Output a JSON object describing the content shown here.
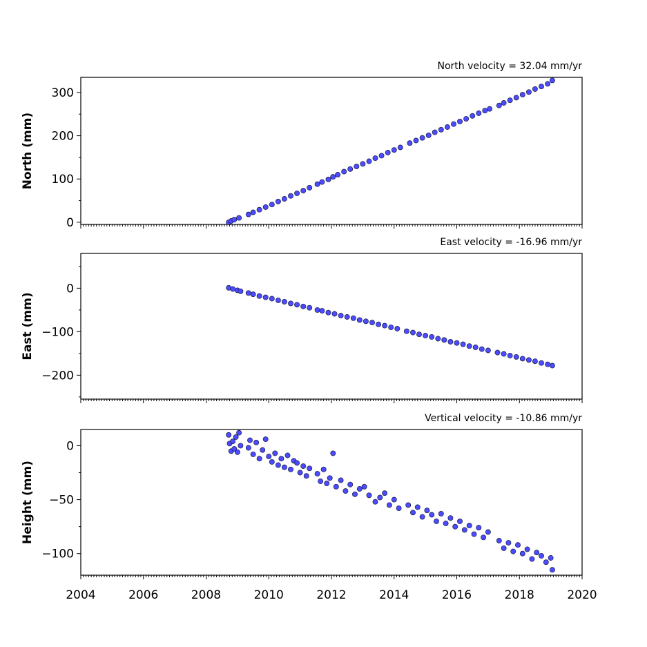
{
  "chart_data": [
    {
      "type": "scatter",
      "panel": "north",
      "ylabel": "North (mm)",
      "velocity_label": "North velocity = 32.04 mm/yr",
      "velocity_mm_per_yr": 32.04,
      "xlim": [
        2004,
        2020
      ],
      "ylim": [
        -5,
        335
      ],
      "yticks": [
        0,
        100,
        200,
        300
      ],
      "ytick_labels": [
        "0",
        "100",
        "200",
        "300"
      ],
      "marker_color": "#4b4bff",
      "marker_edge": "#1a1a40",
      "series": [
        {
          "x": [
            2008.72,
            2008.8,
            2008.9,
            2009.05,
            2009.35,
            2009.5,
            2009.7,
            2009.9,
            2010.1,
            2010.3,
            2010.5,
            2010.7,
            2010.9,
            2011.1,
            2011.3,
            2011.55,
            2011.7,
            2011.9,
            2012.05,
            2012.2,
            2012.4,
            2012.6,
            2012.8,
            2013.0,
            2013.2,
            2013.4,
            2013.6,
            2013.8,
            2014.0,
            2014.2,
            2014.5,
            2014.7,
            2014.9,
            2015.1,
            2015.3,
            2015.5,
            2015.7,
            2015.9,
            2016.1,
            2016.3,
            2016.5,
            2016.7,
            2016.9,
            2017.05,
            2017.35,
            2017.5,
            2017.7,
            2017.9,
            2018.1,
            2018.3,
            2018.5,
            2018.7,
            2018.9,
            2019.05
          ],
          "y": [
            0,
            3,
            6,
            10,
            18,
            23,
            29,
            35,
            41,
            48,
            54,
            61,
            67,
            73,
            80,
            88,
            93,
            99,
            105,
            110,
            117,
            123,
            129,
            135,
            141,
            148,
            154,
            161,
            167,
            173,
            183,
            189,
            195,
            201,
            208,
            214,
            220,
            227,
            233,
            239,
            246,
            252,
            258,
            262,
            270,
            276,
            282,
            288,
            295,
            301,
            308,
            314,
            320,
            328
          ]
        }
      ]
    },
    {
      "type": "scatter",
      "panel": "east",
      "ylabel": "East (mm)",
      "velocity_label": "East velocity = -16.96 mm/yr",
      "velocity_mm_per_yr": -16.96,
      "xlim": [
        2004,
        2020
      ],
      "ylim": [
        -255,
        80
      ],
      "yticks": [
        0,
        -100,
        -200
      ],
      "ytick_labels": [
        "0",
        "−100",
        "−200"
      ],
      "marker_color": "#4b4bff",
      "marker_edge": "#1a1a40",
      "series": [
        {
          "x": [
            2008.72,
            2008.85,
            2009.0,
            2009.1,
            2009.35,
            2009.5,
            2009.7,
            2009.9,
            2010.1,
            2010.3,
            2010.5,
            2010.7,
            2010.9,
            2011.1,
            2011.3,
            2011.55,
            2011.7,
            2011.9,
            2012.1,
            2012.3,
            2012.5,
            2012.7,
            2012.9,
            2013.1,
            2013.3,
            2013.5,
            2013.7,
            2013.9,
            2014.1,
            2014.4,
            2014.6,
            2014.8,
            2015.0,
            2015.2,
            2015.4,
            2015.6,
            2015.8,
            2016.0,
            2016.2,
            2016.4,
            2016.6,
            2016.8,
            2017.0,
            2017.3,
            2017.5,
            2017.7,
            2017.9,
            2018.1,
            2018.3,
            2018.5,
            2018.7,
            2018.9,
            2019.05
          ],
          "y": [
            1,
            -2,
            -5,
            -7,
            -11,
            -14,
            -18,
            -21,
            -24,
            -28,
            -31,
            -35,
            -38,
            -42,
            -45,
            -50,
            -52,
            -56,
            -59,
            -63,
            -66,
            -69,
            -73,
            -76,
            -79,
            -83,
            -86,
            -90,
            -93,
            -99,
            -102,
            -106,
            -109,
            -112,
            -116,
            -119,
            -123,
            -126,
            -129,
            -133,
            -136,
            -140,
            -143,
            -148,
            -151,
            -155,
            -158,
            -162,
            -165,
            -168,
            -172,
            -175,
            -178
          ]
        }
      ]
    },
    {
      "type": "scatter",
      "panel": "height",
      "ylabel": "Height (mm)",
      "velocity_label": "Vertical velocity = -10.86 mm/yr",
      "velocity_mm_per_yr": -10.86,
      "xlim": [
        2004,
        2020
      ],
      "ylim": [
        -120,
        15
      ],
      "yticks": [
        0,
        -50,
        -100
      ],
      "ytick_labels": [
        "0",
        "−50",
        "−100"
      ],
      "marker_color": "#4b4bff",
      "marker_edge": "#1a1a40",
      "series": [
        {
          "x": [
            2008.72,
            2008.75,
            2008.8,
            2008.85,
            2008.9,
            2008.95,
            2009.0,
            2009.05,
            2009.1,
            2009.35,
            2009.4,
            2009.5,
            2009.6,
            2009.7,
            2009.8,
            2009.9,
            2010.0,
            2010.1,
            2010.2,
            2010.3,
            2010.4,
            2010.5,
            2010.6,
            2010.7,
            2010.8,
            2010.9,
            2011.0,
            2011.1,
            2011.2,
            2011.3,
            2011.55,
            2011.65,
            2011.75,
            2011.85,
            2011.95,
            2012.05,
            2012.15,
            2012.3,
            2012.45,
            2012.6,
            2012.75,
            2012.9,
            2013.05,
            2013.2,
            2013.4,
            2013.55,
            2013.7,
            2013.85,
            2014.0,
            2014.15,
            2014.45,
            2014.6,
            2014.75,
            2014.9,
            2015.05,
            2015.2,
            2015.35,
            2015.5,
            2015.65,
            2015.8,
            2015.95,
            2016.1,
            2016.25,
            2016.4,
            2016.55,
            2016.7,
            2016.85,
            2017.0,
            2017.35,
            2017.5,
            2017.65,
            2017.8,
            2017.95,
            2018.1,
            2018.25,
            2018.4,
            2018.55,
            2018.7,
            2018.85,
            2019.0,
            2019.05
          ],
          "y": [
            10,
            2,
            -5,
            4,
            -3,
            8,
            -6,
            12,
            0,
            -2,
            5,
            -8,
            3,
            -12,
            -4,
            6,
            -10,
            -15,
            -7,
            -18,
            -12,
            -20,
            -9,
            -22,
            -14,
            -16,
            -25,
            -19,
            -28,
            -21,
            -26,
            -33,
            -22,
            -35,
            -30,
            -7,
            -38,
            -32,
            -42,
            -36,
            -45,
            -40,
            -38,
            -46,
            -52,
            -48,
            -44,
            -55,
            -50,
            -58,
            -55,
            -62,
            -57,
            -66,
            -60,
            -64,
            -70,
            -63,
            -72,
            -67,
            -75,
            -70,
            -78,
            -74,
            -82,
            -76,
            -85,
            -80,
            -88,
            -95,
            -90,
            -98,
            -92,
            -100,
            -96,
            -105,
            -99,
            -102,
            -108,
            -104,
            -115
          ]
        }
      ]
    }
  ],
  "x_axis": {
    "ticks": [
      2004,
      2006,
      2008,
      2010,
      2012,
      2014,
      2016,
      2018,
      2020
    ],
    "tick_labels": [
      "2004",
      "2006",
      "2008",
      "2010",
      "2012",
      "2014",
      "2016",
      "2018",
      "2020"
    ]
  }
}
